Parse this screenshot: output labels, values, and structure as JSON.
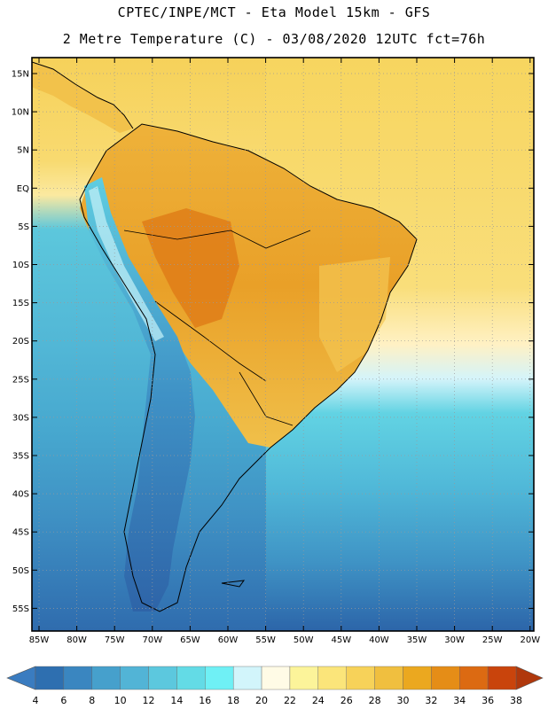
{
  "header": {
    "line1": "CPTEC/INPE/MCT -  Eta Model 15km - GFS",
    "line2": "2 Metre Temperature (C) - 03/08/2020 12UTC fct=76h"
  },
  "axes": {
    "lat_labels": [
      "15N",
      "10N",
      "5N",
      "EQ",
      "5S",
      "10S",
      "15S",
      "20S",
      "25S",
      "30S",
      "35S",
      "40S",
      "45S",
      "50S",
      "55S"
    ],
    "lon_labels": [
      "85W",
      "80W",
      "75W",
      "70W",
      "65W",
      "60W",
      "55W",
      "50W",
      "45W",
      "40W",
      "35W",
      "30W",
      "25W",
      "20W"
    ]
  },
  "colorbar": {
    "labels": [
      "4",
      "6",
      "8",
      "10",
      "12",
      "14",
      "16",
      "18",
      "20",
      "22",
      "24",
      "26",
      "28",
      "30",
      "32",
      "34",
      "36",
      "38"
    ],
    "colors": [
      "#2e6fb0",
      "#3a86c0",
      "#46a0cc",
      "#52b4d6",
      "#5cc8de",
      "#63dbe6",
      "#6ff0f5",
      "#d2f5fb",
      "#fffbe6",
      "#fcf49a",
      "#fbe57a",
      "#f7d259",
      "#f0bf3f",
      "#eba81f",
      "#e58d17",
      "#dc6a12",
      "#c9440c"
    ],
    "low_color": "#3a7cc0",
    "high_color": "#b0380c"
  }
}
